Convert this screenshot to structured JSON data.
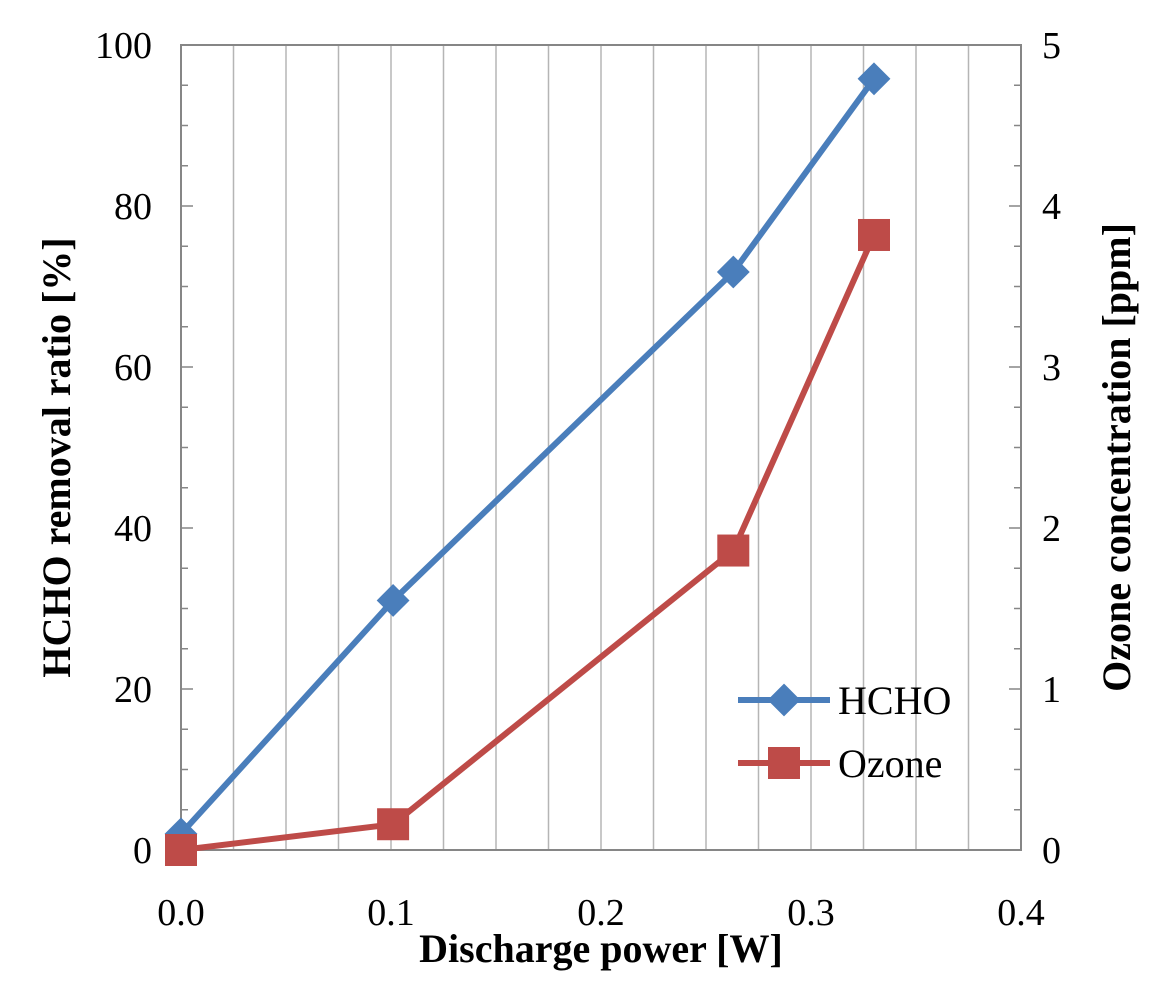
{
  "chart_data": {
    "type": "line",
    "title": "",
    "xlabel": "Discharge power [W]",
    "ylabel": "HCHO removal ratio [%]",
    "y2label": "Ozone concentration [ppm]",
    "xlim": [
      0.0,
      0.4
    ],
    "ylim": [
      0,
      100
    ],
    "y2lim": [
      0,
      5
    ],
    "x_ticks": [
      "0.0",
      "0.1",
      "0.2",
      "0.3",
      "0.4"
    ],
    "y_ticks": [
      "0",
      "20",
      "40",
      "60",
      "80",
      "100"
    ],
    "y2_ticks": [
      "0",
      "1",
      "2",
      "3",
      "4",
      "5"
    ],
    "grid": "vertical",
    "legend_position": "bottom-right",
    "series": [
      {
        "name": "HCHO",
        "axis": "left",
        "color": "#4a7ebb",
        "marker": "diamond",
        "x": [
          0.0,
          0.101,
          0.263,
          0.33
        ],
        "values": [
          2,
          31,
          71.8,
          95.8
        ]
      },
      {
        "name": "Ozone",
        "axis": "right",
        "color": "#be4b48",
        "marker": "square",
        "x": [
          0.0,
          0.101,
          0.263,
          0.33
        ],
        "values": [
          0,
          0.16,
          1.86,
          3.82
        ]
      }
    ]
  }
}
